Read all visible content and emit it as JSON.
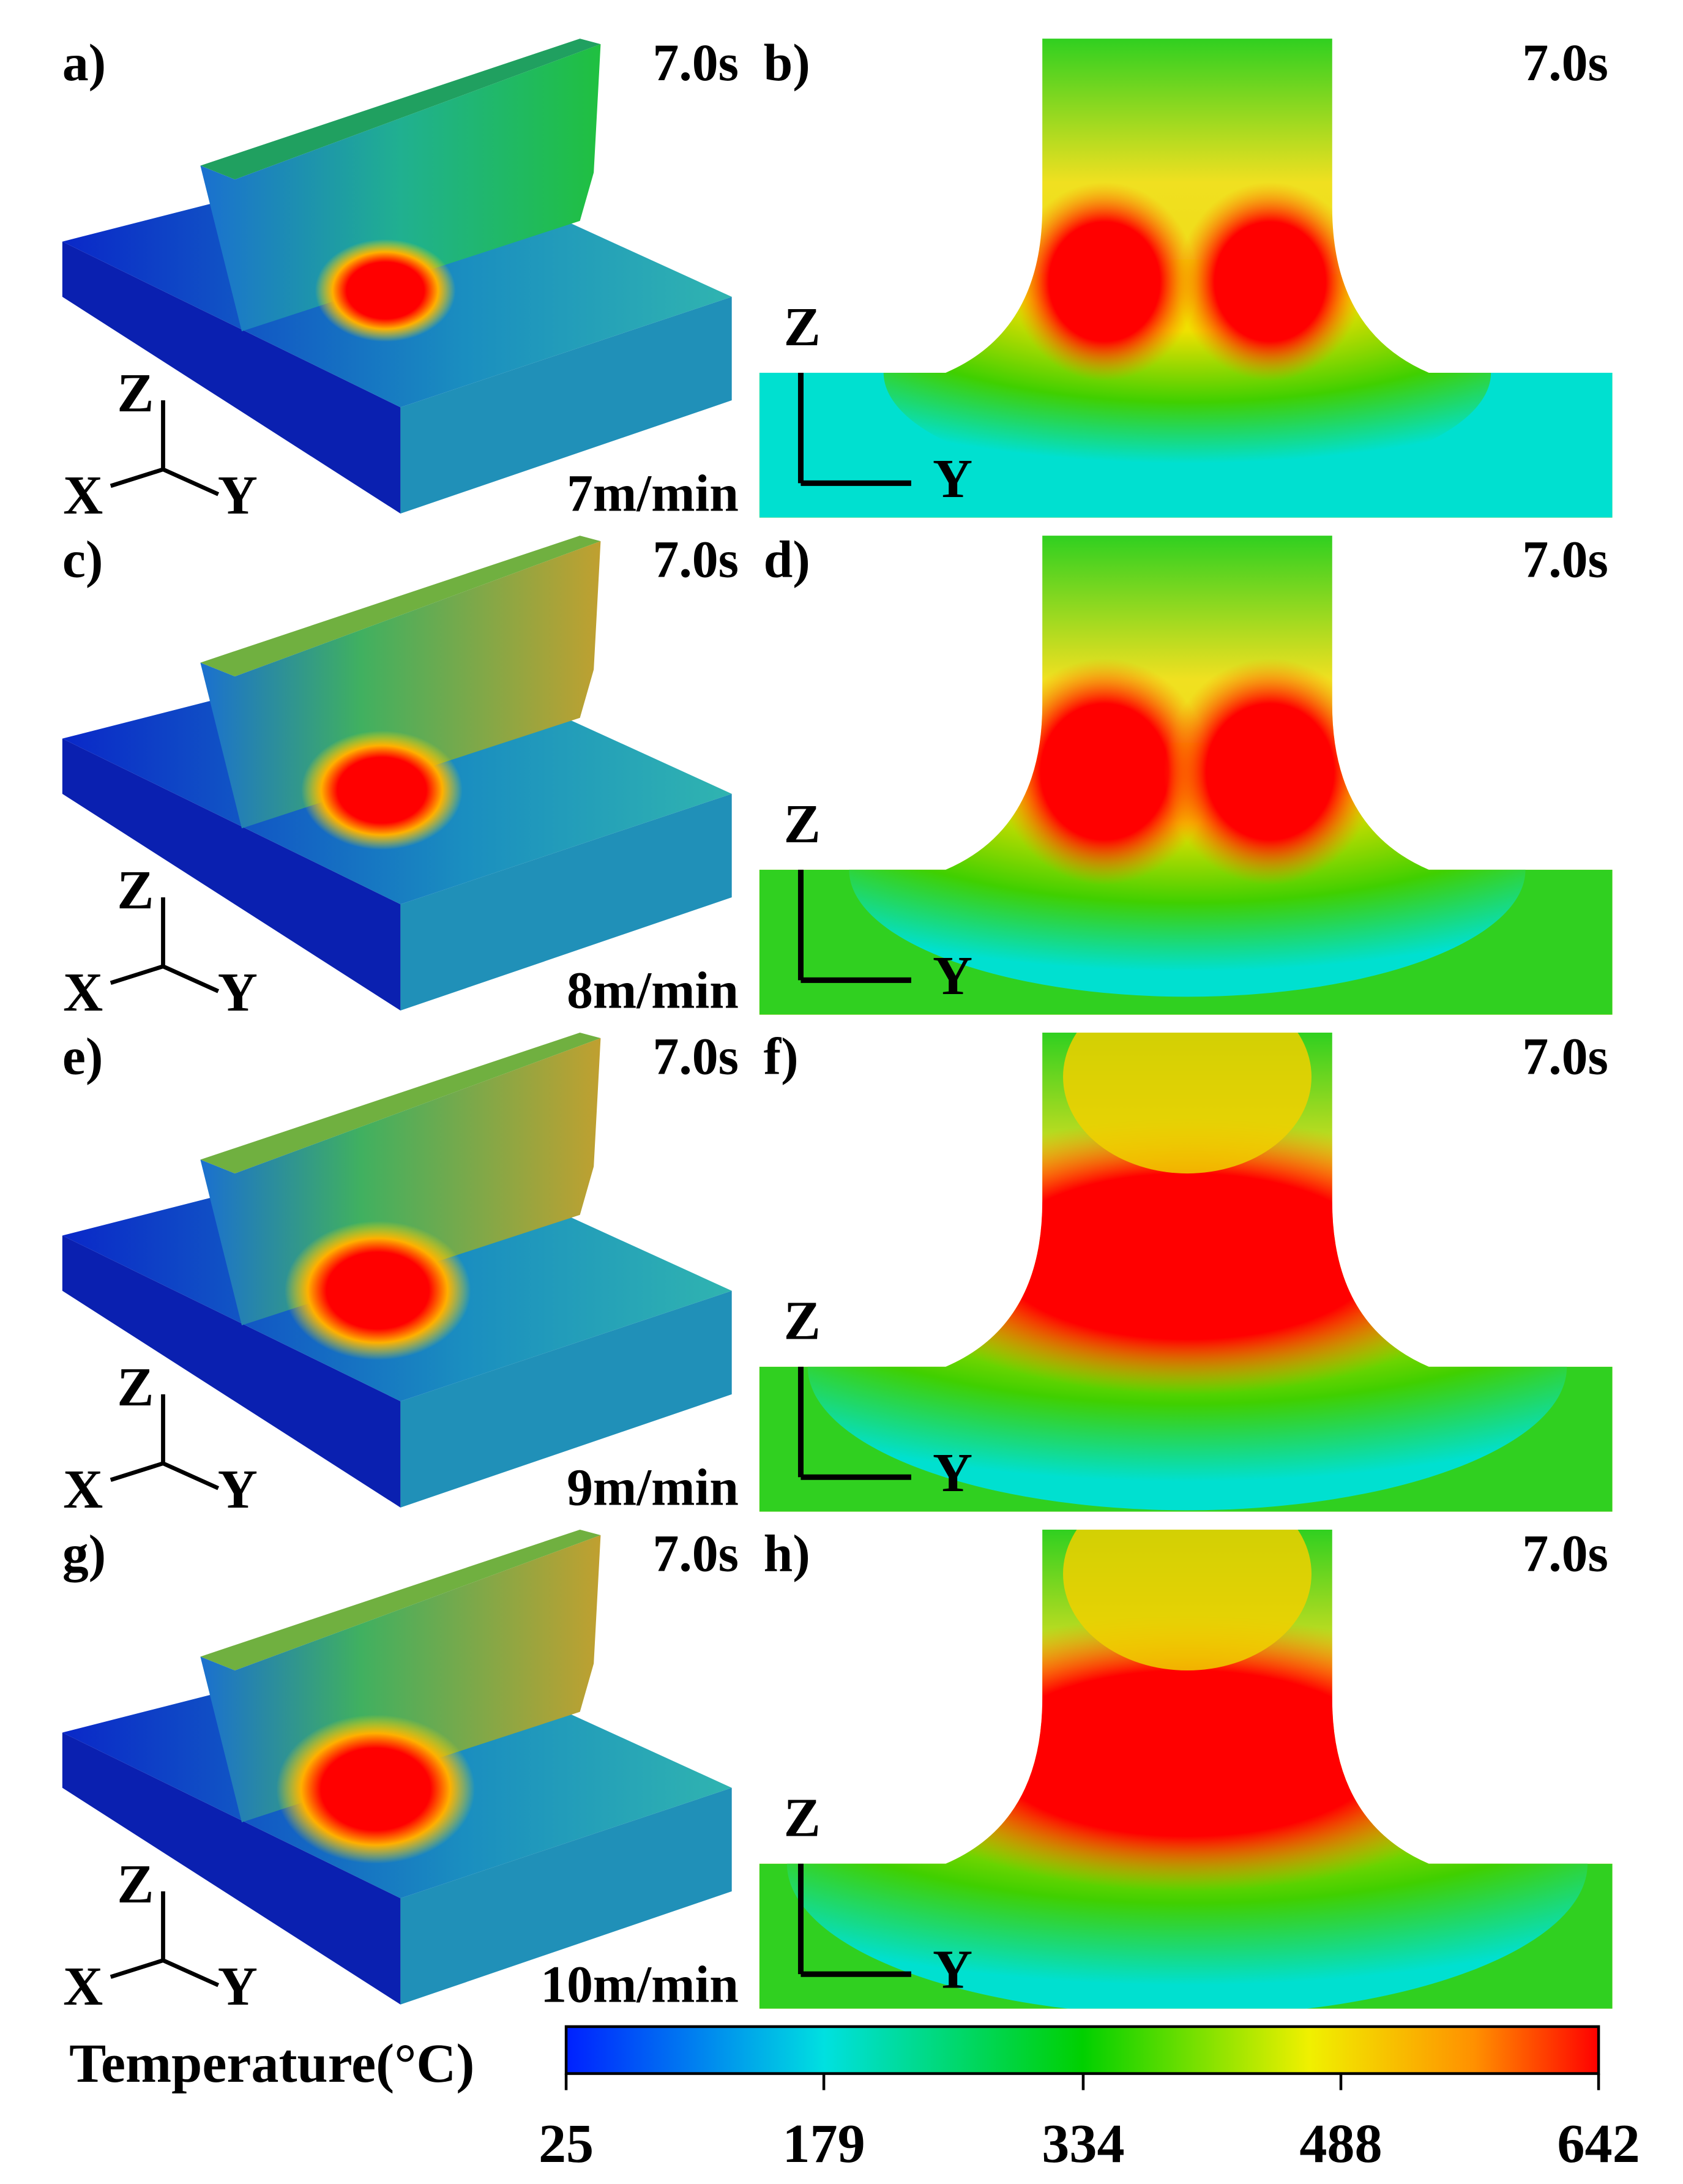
{
  "rows": [
    {
      "left": {
        "label": "a)",
        "time": "7.0s",
        "speed": "7m/min",
        "axes": [
          "Z",
          "X",
          "Y"
        ]
      },
      "right": {
        "label": "b)",
        "time": "7.0s",
        "axes": [
          "Z",
          "Y"
        ]
      }
    },
    {
      "left": {
        "label": "c)",
        "time": "7.0s",
        "speed": "8m/min",
        "axes": [
          "Z",
          "X",
          "Y"
        ]
      },
      "right": {
        "label": "d)",
        "time": "7.0s",
        "axes": [
          "Z",
          "Y"
        ]
      }
    },
    {
      "left": {
        "label": "e)",
        "time": "7.0s",
        "speed": "9m/min",
        "axes": [
          "Z",
          "X",
          "Y"
        ]
      },
      "right": {
        "label": "f)",
        "time": "7.0s",
        "axes": [
          "Z",
          "Y"
        ]
      }
    },
    {
      "left": {
        "label": "g)",
        "time": "7.0s",
        "speed": "10m/min",
        "axes": [
          "Z",
          "X",
          "Y"
        ]
      },
      "right": {
        "label": "h)",
        "time": "7.0s",
        "axes": [
          "Z",
          "Y"
        ]
      }
    }
  ],
  "colorbar": {
    "title": "Temperature(°C)",
    "range": [
      25,
      642
    ],
    "ticks": [
      25,
      179,
      334,
      488,
      642
    ]
  }
}
